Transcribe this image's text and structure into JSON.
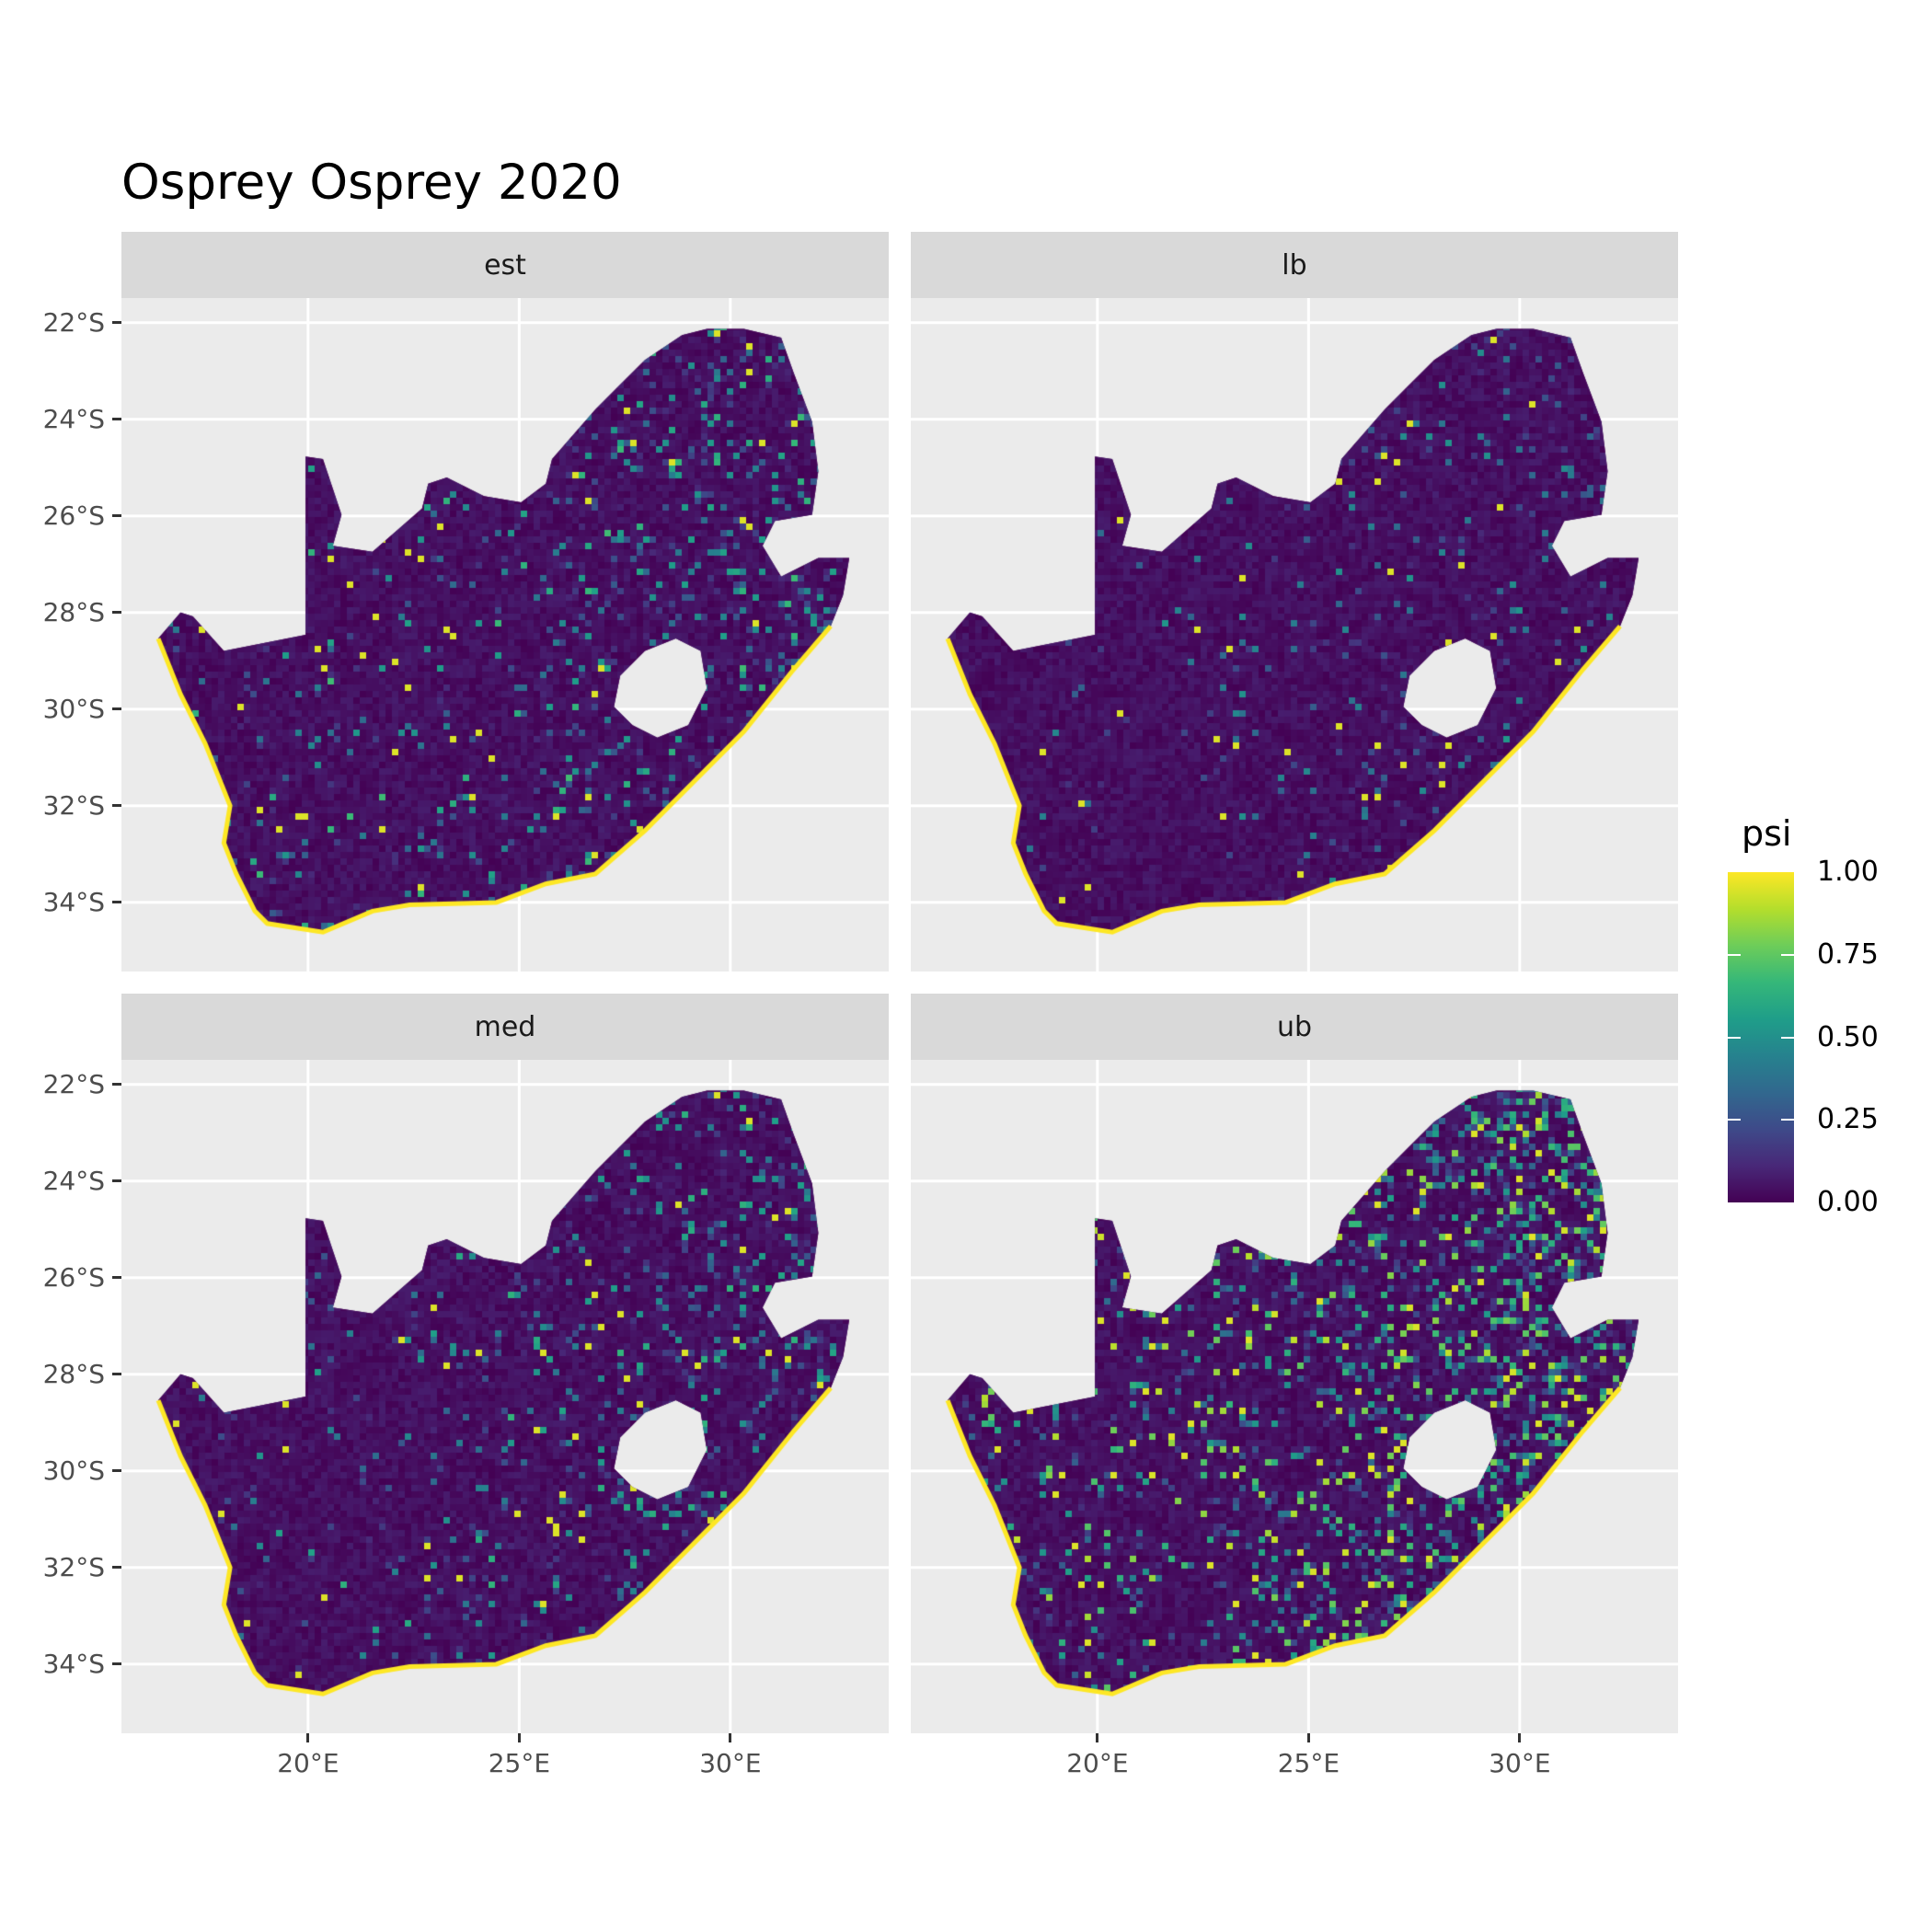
{
  "chart_data": {
    "type": "heatmap",
    "title": "Osprey Osprey 2020",
    "xlabel": "",
    "ylabel": "",
    "panels": [
      {
        "label": "est",
        "mean_level": 0.18
      },
      {
        "label": "lb",
        "mean_level": 0.08
      },
      {
        "label": "med",
        "mean_level": 0.16
      },
      {
        "label": "ub",
        "mean_level": 0.35
      }
    ],
    "x_ticks": [
      {
        "value": 20,
        "label": "20°E"
      },
      {
        "value": 25,
        "label": "25°E"
      },
      {
        "value": 30,
        "label": "30°E"
      }
    ],
    "y_ticks": [
      {
        "value": -22,
        "label": "22°S"
      },
      {
        "value": -24,
        "label": "24°S"
      },
      {
        "value": -26,
        "label": "26°S"
      },
      {
        "value": -28,
        "label": "28°S"
      },
      {
        "value": -30,
        "label": "30°S"
      },
      {
        "value": -32,
        "label": "32°S"
      },
      {
        "value": -34,
        "label": "34°S"
      }
    ],
    "xlim": [
      15.58,
      33.75
    ],
    "ylim": [
      -35.43,
      -21.49
    ],
    "legend": {
      "title": "psi",
      "position": "right",
      "colormap": "viridis",
      "range": [
        0,
        1
      ],
      "ticks": [
        {
          "value": 1.0,
          "label": "1.00"
        },
        {
          "value": 0.75,
          "label": "0.75"
        },
        {
          "value": 0.5,
          "label": "0.50"
        },
        {
          "value": 0.25,
          "label": "0.25"
        },
        {
          "value": 0.0,
          "label": "0.00"
        }
      ]
    }
  }
}
